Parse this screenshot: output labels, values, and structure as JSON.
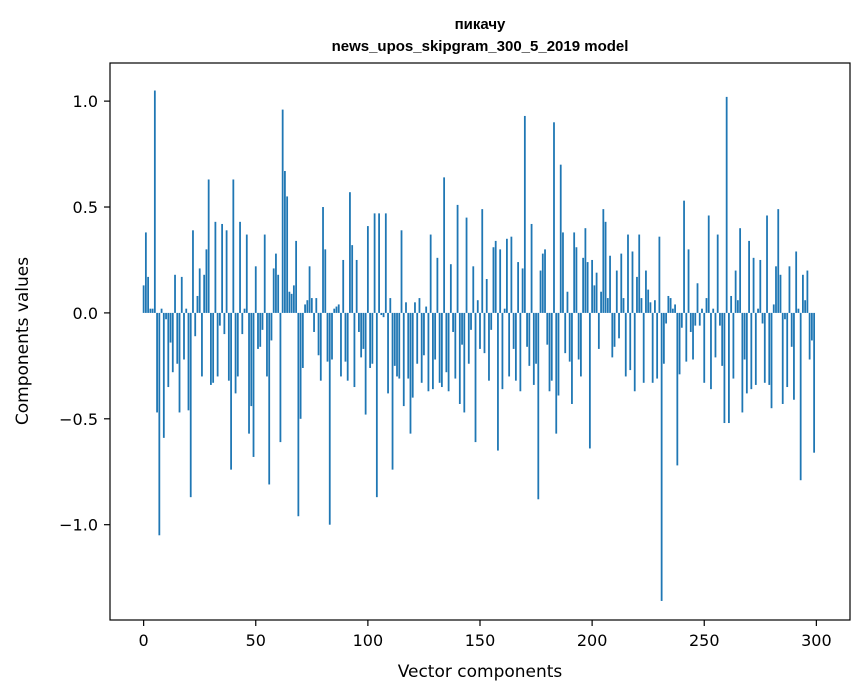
{
  "chart_data": {
    "type": "bar",
    "title": "пикачу",
    "subtitle": "news_upos_skipgram_300_5_2019 model",
    "xlabel": "Vector components",
    "ylabel": "Components values",
    "xlim": [
      -15,
      315
    ],
    "ylim": [
      -1.45,
      1.18
    ],
    "xticks": [
      0,
      50,
      100,
      150,
      200,
      250,
      300
    ],
    "yticks": [
      -1.0,
      -0.5,
      0.0,
      0.5,
      1.0
    ],
    "ytick_labels": [
      "−1.0",
      "−0.5",
      "0.0",
      "0.5",
      "1.0"
    ],
    "grid": false,
    "bar_color": "#1f77b4",
    "x": "0..299",
    "values": [
      0.13,
      0.38,
      0.17,
      0.02,
      0.02,
      1.05,
      -0.47,
      -1.05,
      0.02,
      -0.59,
      -0.03,
      -0.35,
      -0.14,
      -0.28,
      0.18,
      -0.24,
      -0.47,
      0.17,
      -0.22,
      0.02,
      -0.46,
      -0.87,
      0.39,
      -0.11,
      0.08,
      0.21,
      -0.3,
      0.18,
      0.3,
      0.63,
      -0.34,
      -0.33,
      0.43,
      -0.3,
      -0.06,
      0.42,
      -0.1,
      0.39,
      -0.32,
      -0.74,
      0.63,
      -0.38,
      -0.3,
      0.43,
      -0.1,
      0.02,
      0.37,
      -0.57,
      -0.44,
      -0.68,
      0.22,
      -0.17,
      -0.16,
      -0.08,
      0.37,
      -0.3,
      -0.81,
      -0.13,
      0.21,
      0.28,
      0.18,
      -0.61,
      0.96,
      0.67,
      0.55,
      0.1,
      0.09,
      0.13,
      0.34,
      -0.96,
      -0.5,
      -0.26,
      0.04,
      0.06,
      0.22,
      0.07,
      -0.09,
      0.07,
      -0.2,
      -0.32,
      0.5,
      0.3,
      -0.23,
      -1.0,
      -0.22,
      0.02,
      0.03,
      0.04,
      -0.3,
      0.25,
      -0.23,
      -0.32,
      0.57,
      0.32,
      -0.35,
      0.25,
      -0.09,
      -0.21,
      -0.17,
      -0.48,
      0.41,
      -0.26,
      -0.24,
      0.47,
      -0.87,
      0.47,
      -0.01,
      -0.02,
      0.47,
      -0.38,
      0.07,
      -0.74,
      -0.25,
      -0.3,
      -0.31,
      0.39,
      -0.44,
      0.05,
      -0.31,
      -0.57,
      -0.4,
      0.05,
      -0.24,
      0.07,
      -0.33,
      -0.2,
      0.03,
      -0.37,
      0.37,
      -0.36,
      -0.22,
      0.26,
      -0.33,
      -0.35,
      0.64,
      -0.28,
      -0.37,
      0.23,
      -0.09,
      -0.31,
      0.51,
      -0.43,
      -0.15,
      -0.47,
      0.45,
      -0.24,
      -0.08,
      0.22,
      -0.61,
      0.06,
      -0.17,
      0.49,
      -0.19,
      0.16,
      -0.32,
      -0.08,
      0.31,
      0.34,
      -0.65,
      0.3,
      -0.36,
      0.02,
      0.35,
      -0.3,
      0.36,
      -0.17,
      -0.32,
      0.24,
      -0.37,
      0.21,
      0.93,
      -0.16,
      -0.25,
      0.42,
      -0.34,
      -0.24,
      -0.88,
      0.2,
      0.28,
      0.3,
      -0.15,
      -0.37,
      -0.32,
      0.9,
      -0.57,
      -0.39,
      0.7,
      0.38,
      -0.19,
      0.1,
      -0.23,
      -0.43,
      0.38,
      0.31,
      -0.22,
      -0.3,
      0.26,
      0.4,
      0.24,
      -0.64,
      0.25,
      0.13,
      0.19,
      -0.17,
      0.1,
      0.49,
      0.43,
      0.07,
      0.27,
      -0.21,
      -0.16,
      0.2,
      -0.12,
      0.28,
      0.07,
      -0.3,
      0.37,
      -0.27,
      0.29,
      -0.37,
      0.17,
      0.37,
      0.07,
      -0.33,
      0.2,
      0.11,
      0.05,
      -0.33,
      0.06,
      -0.31,
      0.36,
      -1.36,
      -0.24,
      -0.05,
      0.08,
      0.07,
      0.02,
      0.04,
      -0.72,
      -0.29,
      -0.07,
      0.53,
      -0.23,
      0.3,
      -0.09,
      -0.22,
      -0.06,
      0.14,
      -0.06,
      0.02,
      -0.33,
      0.07,
      0.46,
      -0.36,
      0.02,
      -0.21,
      0.37,
      -0.06,
      -0.25,
      -0.52,
      1.02,
      -0.52,
      0.08,
      -0.31,
      0.2,
      0.06,
      0.4,
      -0.47,
      -0.22,
      -0.38,
      0.34,
      -0.36,
      0.26,
      -0.34,
      0.02,
      0.25,
      -0.05,
      -0.33,
      0.46,
      -0.34,
      -0.45,
      0.04,
      0.22,
      0.49,
      0.18,
      -0.43,
      -0.03,
      -0.35,
      0.22,
      -0.16,
      -0.41,
      0.29,
      0.02,
      -0.79,
      0.18,
      0.06,
      0.2,
      -0.22,
      -0.13,
      -0.66
    ]
  }
}
